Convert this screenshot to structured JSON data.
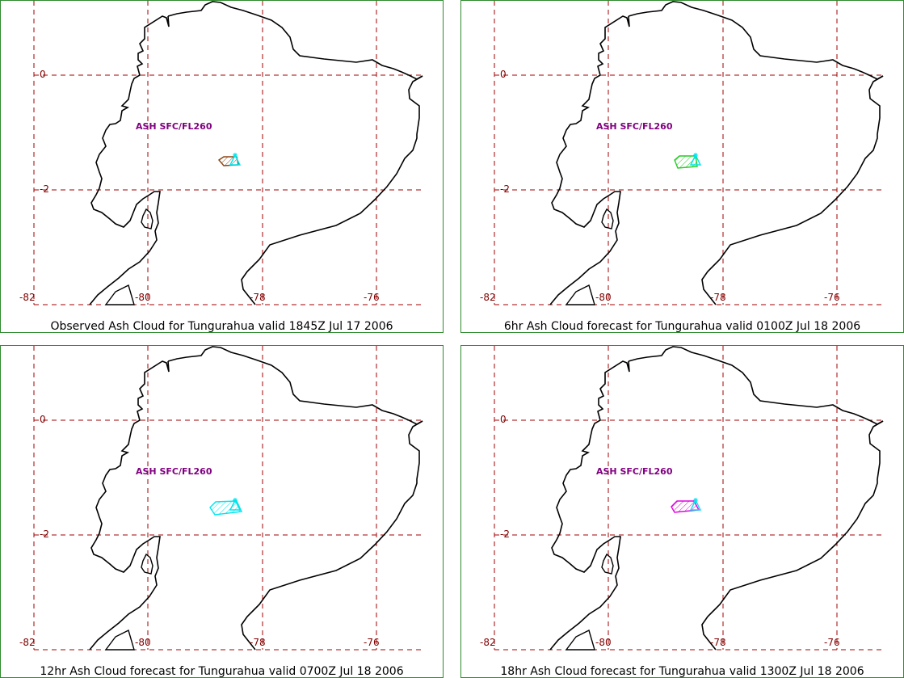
{
  "panels": [
    {
      "caption": "Observed Ash Cloud for Tungurahua valid 1845Z Jul 17 2006",
      "ash_label": "ASH SFC/FL260",
      "cloud_color": "#8b4513",
      "lon_labels": [
        "-82",
        "-80",
        "-78",
        "-76"
      ],
      "lat_labels": [
        "0",
        "-2"
      ]
    },
    {
      "caption": "6hr Ash Cloud forecast for Tungurahua valid 0100Z Jul 18 2006",
      "ash_label": "ASH SFC/FL260",
      "cloud_color": "#22cc22",
      "lon_labels": [
        "-82",
        "-80",
        "-78",
        "-76"
      ],
      "lat_labels": [
        "0",
        "-2"
      ]
    },
    {
      "caption": "12hr Ash Cloud forecast for Tungurahua valid 0700Z Jul 18 2006",
      "ash_label": "ASH SFC/FL260",
      "cloud_color": "#00e5ee",
      "lon_labels": [
        "-82",
        "-80",
        "-78",
        "-76"
      ],
      "lat_labels": [
        "0",
        "-2"
      ]
    },
    {
      "caption": "18hr Ash Cloud forecast for Tungurahua valid 1300Z Jul 18 2006",
      "ash_label": "ASH SFC/FL260",
      "cloud_color": "#e000e0",
      "lon_labels": [
        "-82",
        "-80",
        "-78",
        "-76"
      ],
      "lat_labels": [
        "0",
        "-2"
      ]
    }
  ],
  "colors": {
    "grid": "#a00000",
    "volcano": "#00e5ee",
    "coastline": "#000000",
    "border": "#2e8b2e"
  }
}
